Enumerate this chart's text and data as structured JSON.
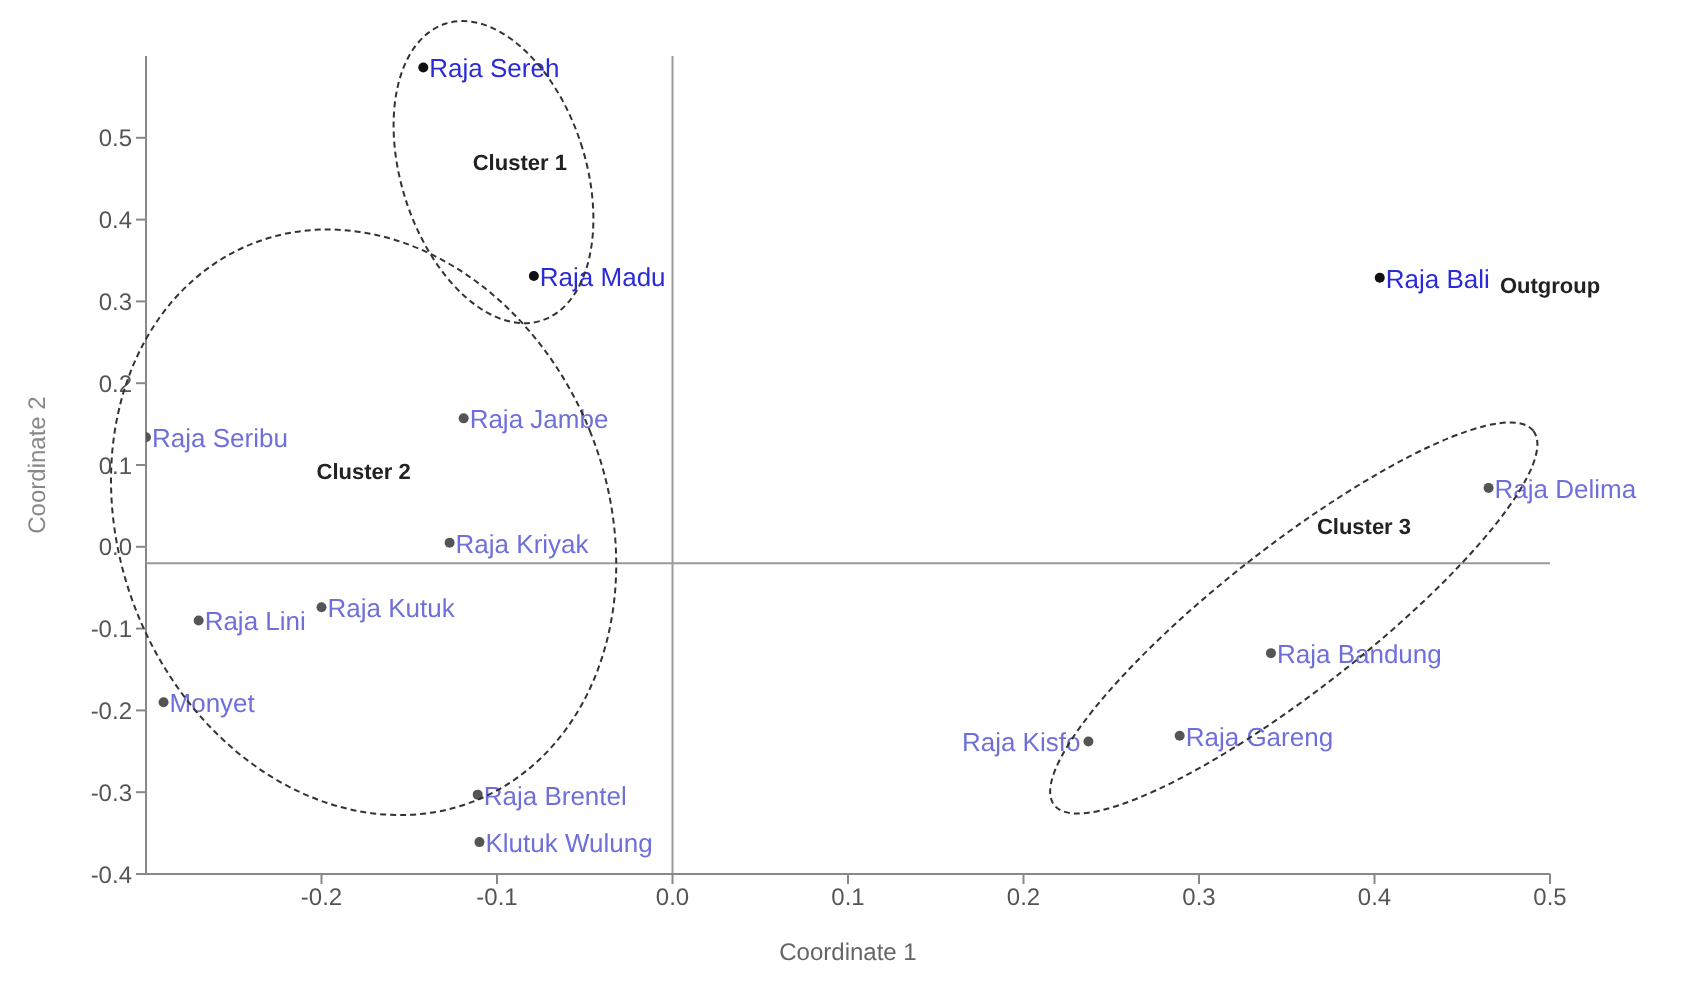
{
  "chart_data": {
    "type": "scatter",
    "xlabel": "Coordinate 1",
    "ylabel": "Coordinate 2",
    "xlim": [
      -0.3,
      0.5
    ],
    "xticks": [
      -0.2,
      -0.1,
      {
        "value": 0,
        "label": "0.0"
      },
      0.1,
      0.2,
      0.3,
      0.4,
      0.5
    ],
    "ylim": [
      -0.4,
      0.6
    ],
    "yticks": [
      -0.4,
      -0.3,
      -0.2,
      -0.1,
      {
        "value": 0,
        "label": "0.0"
      },
      0.1,
      0.2,
      0.3,
      0.4,
      0.5
    ],
    "grid": false,
    "legend": false,
    "marker": "circle",
    "series": [
      {
        "color": "#111111",
        "x": [
          -0.142,
          -0.079,
          0.403
        ],
        "values": [
          0.586,
          0.331,
          0.329
        ],
        "value_labels": [
          "Raja Sereh",
          "Raja Madu",
          "Raja Bali"
        ]
      },
      {
        "color": "#555555",
        "x": [
          -0.3,
          -0.119,
          -0.127,
          -0.27,
          -0.2,
          -0.29,
          -0.111,
          -0.11,
          0.465,
          0.341,
          0.237,
          0.289
        ],
        "values": [
          0.134,
          0.157,
          0.005,
          -0.09,
          -0.074,
          -0.19,
          -0.303,
          -0.361,
          0.072,
          -0.13,
          -0.238,
          -0.231
        ],
        "value_labels": [
          "Raja Seribu",
          "Raja Jambe",
          "Raja Kriyak",
          "Raja Lini",
          "Raja Kutuk",
          "Monyet",
          "Raja Brentel",
          "Klutuk Wulung",
          "Raja Delima",
          "Raja Bandung",
          "Raja Kisfo",
          "Raja Gareng"
        ]
      }
    ],
    "ref_lines": [
      {
        "axis": "x",
        "value": 0,
        "color": "#999999"
      },
      {
        "axis": "y",
        "value": -0.02,
        "color": "#999999"
      }
    ],
    "annotations": [
      "Cluster 1",
      "Cluster 2",
      "Cluster 3",
      "Outgroup"
    ]
  }
}
